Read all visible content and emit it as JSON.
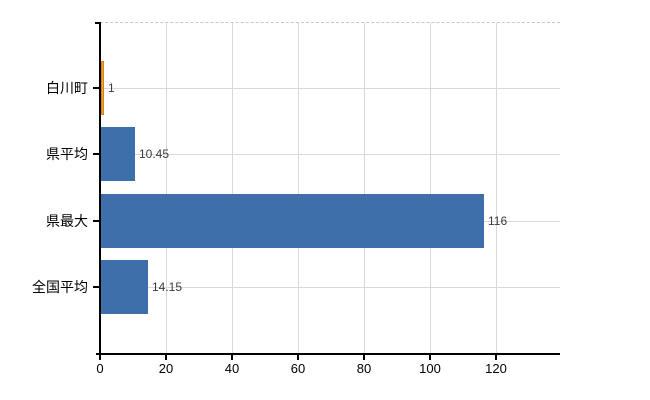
{
  "chart_data": {
    "type": "bar",
    "orientation": "horizontal",
    "title": "",
    "categories": [
      "白川町",
      "県平均",
      "県最大",
      "全国平均"
    ],
    "values": [
      1,
      10.45,
      116,
      14.15
    ],
    "value_labels": [
      "1",
      "10.45",
      "116",
      "14.15"
    ],
    "x_ticks": [
      0,
      20,
      40,
      60,
      80,
      100,
      120
    ],
    "x_tick_labels": [
      "0",
      "20",
      "40",
      "60",
      "80",
      "100",
      "120"
    ],
    "xlim": [
      0,
      139.4
    ],
    "grid": true,
    "legend": "none",
    "colors": {
      "highlight_bar": "#f9a13a",
      "highlight_bar_border": "#d97f16",
      "base_bar": "#3e6fab",
      "gridline": "#d9d9d9",
      "axis": "#000000",
      "value_text": "#3b3b3b",
      "tick_text": "#000000"
    },
    "bar_colors": [
      "#f9a13a",
      "#3e6fab",
      "#3e6fab",
      "#3e6fab"
    ]
  }
}
